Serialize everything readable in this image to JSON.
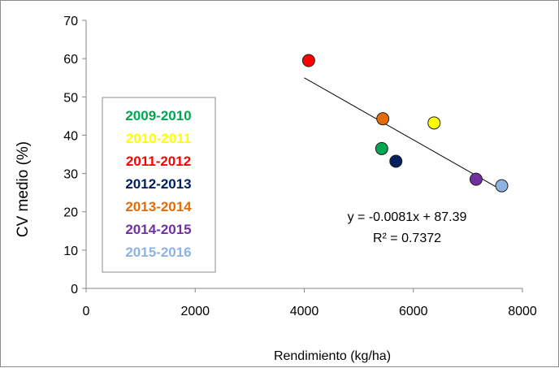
{
  "chart_data": {
    "type": "scatter",
    "xlabel": "Rendimiento (kg/ha)",
    "ylabel": "CV medio (%)",
    "xlim": [
      0,
      8000
    ],
    "ylim": [
      0,
      70
    ],
    "xticks": [
      "0",
      "2000",
      "4000",
      "6000",
      "8000"
    ],
    "yticks": [
      "0",
      "10",
      "20",
      "30",
      "40",
      "50",
      "60",
      "70"
    ],
    "grid": false,
    "legend_position": "left",
    "series": [
      {
        "name": "2009-2010",
        "color": "#00a651",
        "x": 5420,
        "y": 36.5
      },
      {
        "name": "2010-2011",
        "color": "#ffff00",
        "x": 6380,
        "y": 43.2
      },
      {
        "name": "2011-2012",
        "color": "#ff0000",
        "x": 4080,
        "y": 59.5
      },
      {
        "name": "2012-2013",
        "color": "#002060",
        "x": 5680,
        "y": 33.2
      },
      {
        "name": "2013-2014",
        "color": "#e36c09",
        "x": 5440,
        "y": 44.3
      },
      {
        "name": "2014-2015",
        "color": "#7030a0",
        "x": 7150,
        "y": 28.5
      },
      {
        "name": "2015-2016",
        "color": "#8db3e2",
        "x": 7620,
        "y": 26.8
      }
    ],
    "trendline": {
      "slope": -0.0081,
      "intercept": 87.39,
      "x_range": [
        4000,
        7600
      ],
      "equation": "y = -0.0081x + 87.39",
      "r_squared": "R² = 0.7372"
    }
  }
}
